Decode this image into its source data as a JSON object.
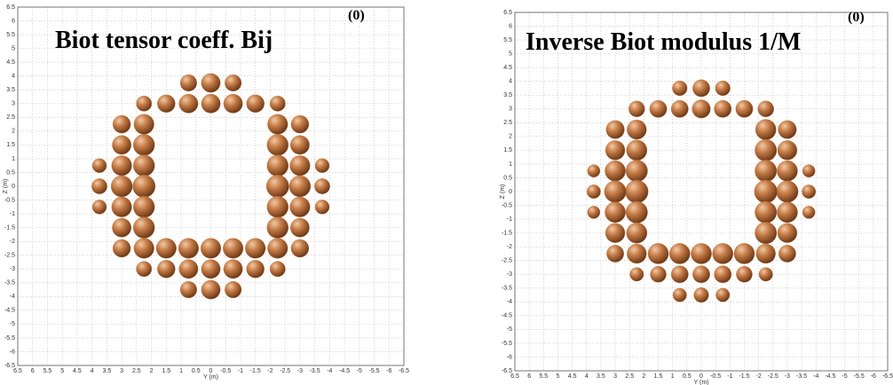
{
  "chart_data": [
    {
      "type": "scatter",
      "title": "Biot tensor coeff. Bij",
      "title_superscript": "(0)",
      "xlabel": "Y (m)",
      "ylabel": "Z (m)",
      "xlim": [
        6.5,
        -6.5
      ],
      "ylim": [
        -6.5,
        6.5
      ],
      "xticks": [
        6.5,
        6,
        5.5,
        5,
        4.5,
        4,
        3.5,
        3,
        2.5,
        2,
        1.5,
        1,
        0.5,
        0,
        -0.5,
        -1,
        -1.5,
        -2,
        -2.5,
        -3,
        -3.5,
        -4,
        -4.5,
        -5,
        -5.5,
        -6,
        -6.5
      ],
      "yticks": [
        -6.5,
        -6,
        -5.5,
        -5,
        -4.5,
        -4,
        -3.5,
        -3,
        -2.5,
        -2,
        -1.5,
        -1,
        -0.5,
        0,
        0.5,
        1,
        1.5,
        2,
        2.5,
        3,
        3.5,
        4,
        4.5,
        5,
        5.5,
        6,
        6.5
      ],
      "grid": true,
      "color": "#c47a45",
      "x": [
        -0.75,
        0,
        0.75,
        -2.25,
        -1.5,
        -0.75,
        0,
        0.75,
        1.5,
        2.25,
        -3,
        -2.25,
        2.25,
        3,
        -3,
        -2.25,
        2.25,
        3,
        -3.75,
        -3,
        -2.25,
        2.25,
        3,
        3.75,
        -3.75,
        -3,
        -2.25,
        2.25,
        3,
        3.75,
        -3.75,
        -3,
        -2.25,
        2.25,
        3,
        3.75,
        -3,
        -2.25,
        2.25,
        3,
        -3,
        -2.25,
        -1.5,
        -0.75,
        0,
        0.75,
        1.5,
        2.25,
        3,
        -2.25,
        -1.5,
        -0.75,
        0,
        0.75,
        1.5,
        2.25,
        -0.75,
        0,
        0.75
      ],
      "y": [
        3.75,
        3.75,
        3.75,
        3,
        3,
        3,
        3,
        3,
        3,
        3,
        2.25,
        2.25,
        2.25,
        2.25,
        1.5,
        1.5,
        1.5,
        1.5,
        0.75,
        0.75,
        0.75,
        0.75,
        0.75,
        0.75,
        0,
        0,
        0,
        0,
        0,
        0,
        -0.75,
        -0.75,
        -0.75,
        -0.75,
        -0.75,
        -0.75,
        -1.5,
        -1.5,
        -1.5,
        -1.5,
        -2.25,
        -2.25,
        -2.25,
        -2.25,
        -2.25,
        -2.25,
        -2.25,
        -2.25,
        -2.25,
        -3,
        -3,
        -3,
        -3,
        -3,
        -3,
        -3,
        -3.75,
        -3.75,
        -3.75
      ],
      "sizes": [
        0.28,
        0.32,
        0.28,
        0.26,
        0.3,
        0.32,
        0.32,
        0.32,
        0.3,
        0.26,
        0.3,
        0.34,
        0.34,
        0.3,
        0.32,
        0.36,
        0.36,
        0.32,
        0.24,
        0.34,
        0.36,
        0.36,
        0.34,
        0.24,
        0.26,
        0.36,
        0.38,
        0.38,
        0.36,
        0.26,
        0.24,
        0.34,
        0.36,
        0.36,
        0.34,
        0.24,
        0.32,
        0.36,
        0.36,
        0.32,
        0.3,
        0.34,
        0.34,
        0.34,
        0.34,
        0.34,
        0.34,
        0.34,
        0.3,
        0.26,
        0.3,
        0.32,
        0.32,
        0.32,
        0.3,
        0.26,
        0.28,
        0.32,
        0.28
      ]
    },
    {
      "type": "scatter",
      "title": "Inverse Biot modulus 1/M",
      "title_superscript": "(0)",
      "xlabel": "Y (m)",
      "ylabel": "Z (m)",
      "xlim": [
        6.5,
        -6.5
      ],
      "ylim": [
        -6.5,
        6.5
      ],
      "xticks": [
        6.5,
        6,
        5.5,
        5,
        4.5,
        4,
        3.5,
        3,
        2.5,
        2,
        1.5,
        1,
        0.5,
        0,
        -0.5,
        -1,
        -1.5,
        -2,
        -2.5,
        -3,
        -3.5,
        -4,
        -4.5,
        -5,
        -5.5,
        -6,
        -6.5
      ],
      "yticks": [
        -6.5,
        -6,
        -5.5,
        -5,
        -4.5,
        -4,
        -3.5,
        -3,
        -2.5,
        -2,
        -1.5,
        -1,
        -0.5,
        0,
        0.5,
        1,
        1.5,
        2,
        2.5,
        3,
        3.5,
        4,
        4.5,
        5,
        5.5,
        6,
        6.5
      ],
      "grid": true,
      "color": "#c47a45",
      "x": [
        -0.75,
        0,
        0.75,
        -2.25,
        -1.5,
        -0.75,
        0,
        0.75,
        1.5,
        2.25,
        -3,
        -2.25,
        2.25,
        3,
        -3,
        -2.25,
        2.25,
        3,
        -3.75,
        -3,
        -2.25,
        2.25,
        3,
        3.75,
        -3.75,
        -3,
        -2.25,
        2.25,
        3,
        3.75,
        -3.75,
        -3,
        -2.25,
        2.25,
        3,
        3.75,
        -3,
        -2.25,
        2.25,
        3,
        -3,
        -2.25,
        -1.5,
        -0.75,
        0,
        0.75,
        1.5,
        2.25,
        3,
        -2.25,
        -1.5,
        -0.75,
        0,
        0.75,
        1.5,
        2.25,
        -0.75,
        0,
        0.75
      ],
      "y": [
        3.75,
        3.75,
        3.75,
        3,
        3,
        3,
        3,
        3,
        3,
        3,
        2.25,
        2.25,
        2.25,
        2.25,
        1.5,
        1.5,
        1.5,
        1.5,
        0.75,
        0.75,
        0.75,
        0.75,
        0.75,
        0.75,
        0,
        0,
        0,
        0,
        0,
        0,
        -0.75,
        -0.75,
        -0.75,
        -0.75,
        -0.75,
        -0.75,
        -1.5,
        -1.5,
        -1.5,
        -1.5,
        -2.25,
        -2.25,
        -2.25,
        -2.25,
        -2.25,
        -2.25,
        -2.25,
        -2.25,
        -2.25,
        -3,
        -3,
        -3,
        -3,
        -3,
        -3,
        -3,
        -3.75,
        -3.75,
        -3.75
      ],
      "sizes": [
        0.26,
        0.3,
        0.26,
        0.28,
        0.3,
        0.3,
        0.32,
        0.3,
        0.3,
        0.28,
        0.32,
        0.36,
        0.34,
        0.32,
        0.34,
        0.38,
        0.36,
        0.34,
        0.22,
        0.36,
        0.38,
        0.38,
        0.36,
        0.22,
        0.24,
        0.38,
        0.4,
        0.4,
        0.38,
        0.24,
        0.22,
        0.36,
        0.38,
        0.38,
        0.36,
        0.22,
        0.34,
        0.38,
        0.36,
        0.34,
        0.3,
        0.34,
        0.36,
        0.36,
        0.36,
        0.36,
        0.36,
        0.34,
        0.3,
        0.24,
        0.28,
        0.3,
        0.3,
        0.3,
        0.28,
        0.24,
        0.24,
        0.26,
        0.24
      ]
    }
  ]
}
